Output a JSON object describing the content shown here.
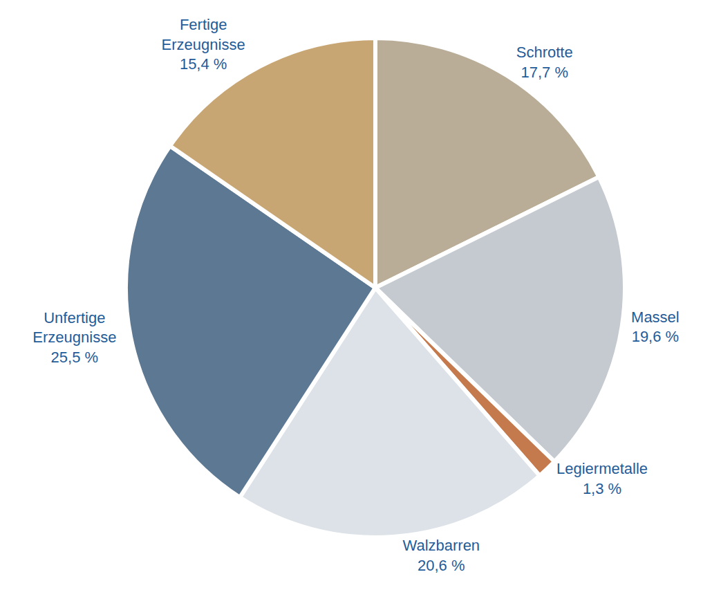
{
  "chart_data": {
    "type": "pie",
    "categories": [
      "Schrotte",
      "Massel",
      "Legiermetalle",
      "Walzbarren",
      "Unfertige Erzeugnisse",
      "Fertige Erzeugnisse"
    ],
    "values": [
      17.7,
      19.6,
      1.3,
      20.6,
      25.5,
      15.4
    ],
    "value_labels": [
      "17,7 %",
      "19,6 %",
      "1,3 %",
      "20,6 %",
      "25,5 %",
      "15,4 %"
    ],
    "colors": [
      "#b9ad98",
      "#c5cad1",
      "#c47a4c",
      "#dde2e8",
      "#5d7893",
      "#c8a674"
    ],
    "data_labels": true
  }
}
